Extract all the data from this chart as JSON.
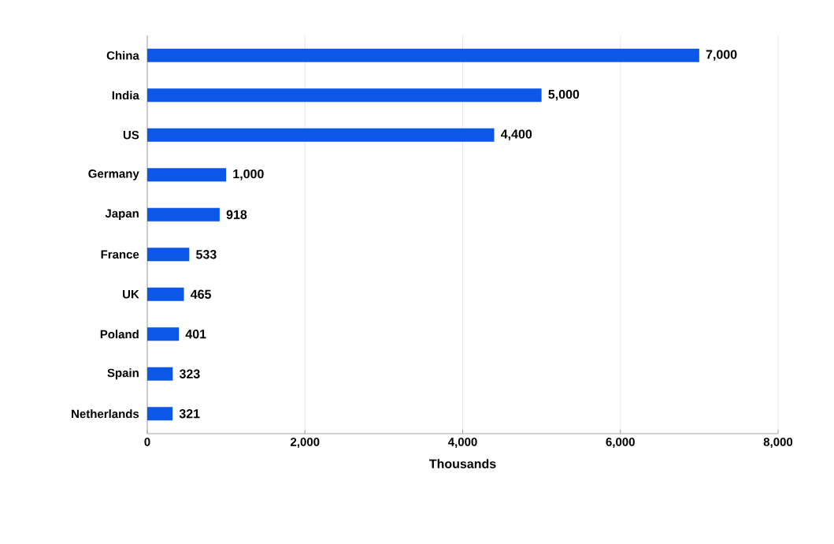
{
  "chart_data": {
    "type": "bar",
    "orientation": "horizontal",
    "categories": [
      "China",
      "India",
      "US",
      "Germany",
      "Japan",
      "France",
      "UK",
      "Poland",
      "Spain",
      "Netherlands"
    ],
    "values": [
      7000,
      5000,
      4400,
      1000,
      918,
      533,
      465,
      401,
      323,
      321
    ],
    "value_labels": [
      "7,000",
      "5,000",
      "4,400",
      "1,000",
      "918",
      "533",
      "465",
      "401",
      "323",
      "321"
    ],
    "color": "#0d57e8",
    "xlabel": "Thousands",
    "xlim": [
      0,
      8000
    ],
    "xticks": [
      0,
      {
        "value": 2000,
        "label": "2,000"
      },
      {
        "value": 4000,
        "label": "4,000"
      },
      {
        "value": 6000,
        "label": "6,000"
      },
      {
        "value": 8000,
        "label": "8,000"
      }
    ],
    "grid": "x"
  }
}
